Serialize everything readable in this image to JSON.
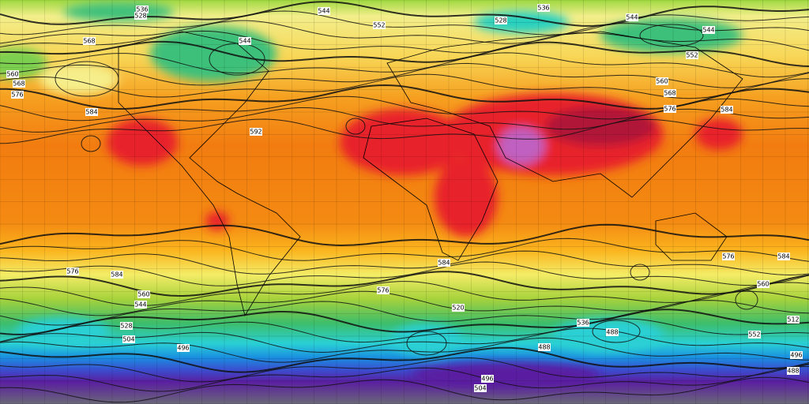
{
  "map": {
    "contour_labels": [
      "536",
      "528",
      "544",
      "552",
      "536",
      "528",
      "544",
      "544",
      "552",
      "544",
      "568",
      "560",
      "568",
      "576",
      "584",
      "592",
      "560",
      "568",
      "576",
      "584",
      "576",
      "584",
      "576",
      "584",
      "576",
      "584",
      "560",
      "544",
      "528",
      "504",
      "496",
      "488",
      "488",
      "496",
      "488",
      "496",
      "504",
      "552",
      "560",
      "512",
      "536",
      "520"
    ]
  }
}
